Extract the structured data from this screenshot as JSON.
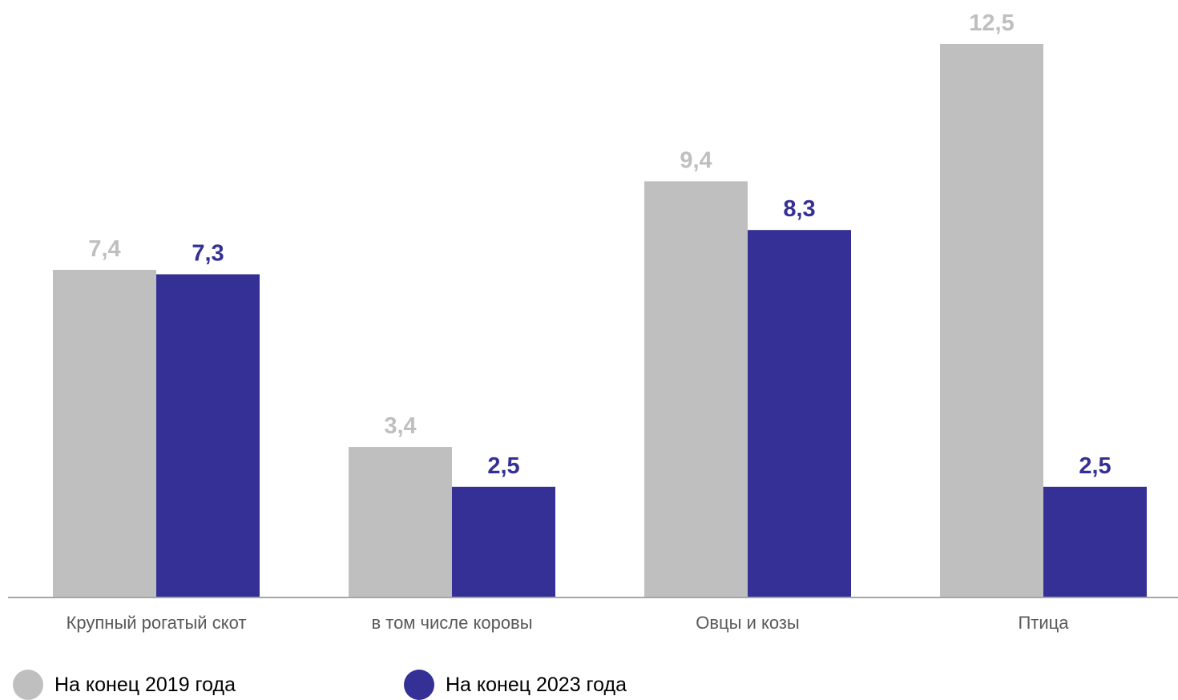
{
  "chart_data": {
    "type": "bar",
    "categories": [
      "Крупный рогатый скот",
      "в том числе коровы",
      "Овцы и козы",
      "Птица"
    ],
    "series": [
      {
        "name": "На конец 2019 года",
        "values": [
          7.4,
          3.4,
          9.4,
          12.5
        ],
        "labels": [
          "7,4",
          "3,4",
          "9,4",
          "12,5"
        ],
        "color": "#bfbfbf"
      },
      {
        "name": "На конец 2023 года",
        "values": [
          7.3,
          2.5,
          8.3,
          2.5
        ],
        "labels": [
          "7,3",
          "2,5",
          "8,3",
          "2,5"
        ],
        "color": "#353095"
      }
    ],
    "ylim": [
      0,
      12.5
    ],
    "grid": false,
    "legend_position": "bottom-left"
  }
}
